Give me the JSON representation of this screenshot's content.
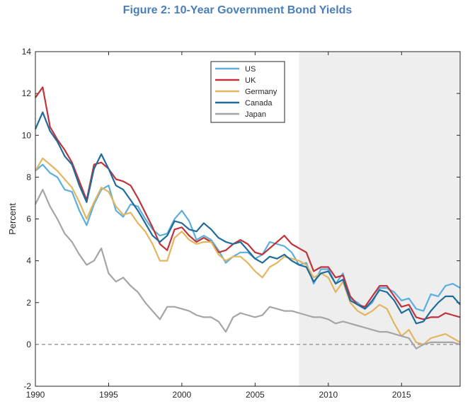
{
  "chart_data": {
    "type": "line",
    "title": "Figure 2: 10-Year Government Bond Yields",
    "xlabel": "",
    "ylabel": "Percent",
    "xlim": [
      1990,
      2019
    ],
    "ylim": [
      -2,
      14
    ],
    "xticks": [
      1990,
      1995,
      2000,
      2005,
      2010,
      2015
    ],
    "yticks": [
      -2,
      0,
      2,
      4,
      6,
      8,
      10,
      12,
      14
    ],
    "shaded_region": [
      2008,
      2019
    ],
    "zero_line": true,
    "legend_position": "top-center",
    "series": [
      {
        "name": "US",
        "color": "#5aaee0",
        "x": [
          1990,
          1990.5,
          1991,
          1991.5,
          1992,
          1992.5,
          1993,
          1993.5,
          1994,
          1994.5,
          1995,
          1995.5,
          1996,
          1996.5,
          1997,
          1997.5,
          1998,
          1998.5,
          1999,
          1999.5,
          2000,
          2000.5,
          2001,
          2001.5,
          2002,
          2002.5,
          2003,
          2003.5,
          2004,
          2004.5,
          2005,
          2005.5,
          2006,
          2006.5,
          2007,
          2007.5,
          2008,
          2008.5,
          2009,
          2009.5,
          2010,
          2010.5,
          2011,
          2011.5,
          2012,
          2012.5,
          2013,
          2013.5,
          2014,
          2014.5,
          2015,
          2015.5,
          2016,
          2016.5,
          2017,
          2017.5,
          2018,
          2018.5,
          2019
        ],
        "values": [
          8.3,
          8.6,
          8.2,
          8.0,
          7.4,
          7.3,
          6.4,
          5.7,
          6.7,
          7.4,
          7.6,
          6.4,
          6.1,
          6.7,
          6.6,
          6.0,
          5.5,
          5.2,
          5.3,
          6.0,
          6.4,
          5.9,
          5.0,
          5.2,
          5.0,
          4.5,
          3.9,
          4.2,
          4.4,
          4.4,
          4.1,
          4.3,
          4.9,
          4.8,
          4.7,
          4.4,
          3.8,
          3.9,
          2.9,
          3.6,
          3.6,
          2.9,
          3.4,
          2.2,
          2.0,
          1.7,
          2.0,
          2.7,
          2.7,
          2.5,
          2.1,
          2.2,
          1.7,
          1.6,
          2.4,
          2.3,
          2.8,
          2.9,
          2.7
        ]
      },
      {
        "name": "UK",
        "color": "#c0333a",
        "x": [
          1990,
          1990.5,
          1991,
          1991.5,
          1992,
          1992.5,
          1993,
          1993.5,
          1994,
          1994.5,
          1995,
          1995.5,
          1996,
          1996.5,
          1997,
          1997.5,
          1998,
          1998.5,
          1999,
          1999.5,
          2000,
          2000.5,
          2001,
          2001.5,
          2002,
          2002.5,
          2003,
          2003.5,
          2004,
          2004.5,
          2005,
          2005.5,
          2006,
          2006.5,
          2007,
          2007.5,
          2008,
          2008.5,
          2009,
          2009.5,
          2010,
          2010.5,
          2011,
          2011.5,
          2012,
          2012.5,
          2013,
          2013.5,
          2014,
          2014.5,
          2015,
          2015.5,
          2016,
          2016.5,
          2017,
          2017.5,
          2018,
          2018.5,
          2019
        ],
        "values": [
          11.8,
          12.3,
          10.4,
          9.8,
          9.3,
          8.7,
          7.8,
          6.9,
          8.6,
          8.7,
          8.4,
          7.9,
          7.8,
          7.6,
          7.0,
          6.3,
          5.6,
          4.8,
          4.5,
          5.5,
          5.6,
          5.2,
          4.9,
          5.1,
          4.9,
          4.4,
          4.5,
          4.8,
          5.0,
          4.8,
          4.4,
          4.3,
          4.6,
          4.9,
          5.2,
          4.8,
          4.6,
          4.4,
          3.5,
          3.7,
          3.7,
          3.2,
          3.3,
          2.3,
          1.9,
          1.8,
          2.3,
          2.8,
          2.8,
          2.3,
          1.8,
          1.9,
          1.3,
          1.2,
          1.3,
          1.3,
          1.5,
          1.4,
          1.3
        ]
      },
      {
        "name": "Germany",
        "color": "#e3b55e",
        "x": [
          1990,
          1990.5,
          1991,
          1991.5,
          1992,
          1992.5,
          1993,
          1993.5,
          1994,
          1994.5,
          1995,
          1995.5,
          1996,
          1996.5,
          1997,
          1997.5,
          1998,
          1998.5,
          1999,
          1999.5,
          2000,
          2000.5,
          2001,
          2001.5,
          2002,
          2002.5,
          2003,
          2003.5,
          2004,
          2004.5,
          2005,
          2005.5,
          2006,
          2006.5,
          2007,
          2007.5,
          2008,
          2008.5,
          2009,
          2009.5,
          2010,
          2010.5,
          2011,
          2011.5,
          2012,
          2012.5,
          2013,
          2013.5,
          2014,
          2014.5,
          2015,
          2015.5,
          2016,
          2016.5,
          2017,
          2017.5,
          2018,
          2018.5,
          2019
        ],
        "values": [
          8.3,
          8.9,
          8.6,
          8.3,
          7.9,
          7.5,
          6.8,
          6.0,
          6.8,
          7.5,
          7.3,
          6.6,
          6.2,
          6.3,
          5.8,
          5.4,
          4.8,
          4.0,
          4.0,
          5.1,
          5.4,
          5.0,
          4.8,
          4.9,
          4.9,
          4.3,
          4.0,
          4.2,
          4.2,
          3.9,
          3.5,
          3.2,
          3.7,
          3.9,
          4.2,
          4.1,
          4.0,
          3.8,
          3.2,
          3.4,
          3.2,
          2.5,
          3.0,
          2.0,
          1.6,
          1.4,
          1.6,
          1.9,
          1.7,
          1.0,
          0.4,
          0.7,
          0.1,
          0.0,
          0.3,
          0.4,
          0.5,
          0.3,
          0.1
        ]
      },
      {
        "name": "Canada",
        "color": "#1f6b9a",
        "x": [
          1990,
          1990.5,
          1991,
          1991.5,
          1992,
          1992.5,
          1993,
          1993.5,
          1994,
          1994.5,
          1995,
          1995.5,
          1996,
          1996.5,
          1997,
          1997.5,
          1998,
          1998.5,
          1999,
          1999.5,
          2000,
          2000.5,
          2001,
          2001.5,
          2002,
          2002.5,
          2003,
          2003.5,
          2004,
          2004.5,
          2005,
          2005.5,
          2006,
          2006.5,
          2007,
          2007.5,
          2008,
          2008.5,
          2009,
          2009.5,
          2010,
          2010.5,
          2011,
          2011.5,
          2012,
          2012.5,
          2013,
          2013.5,
          2014,
          2014.5,
          2015,
          2015.5,
          2016,
          2016.5,
          2017,
          2017.5,
          2018,
          2018.5,
          2019
        ],
        "values": [
          10.3,
          11.1,
          10.2,
          9.7,
          9.0,
          8.6,
          7.6,
          6.8,
          8.4,
          9.1,
          8.4,
          7.6,
          7.4,
          6.9,
          6.4,
          5.8,
          5.2,
          4.9,
          5.2,
          5.9,
          5.8,
          5.5,
          5.4,
          5.8,
          5.5,
          5.1,
          4.9,
          4.8,
          4.9,
          4.5,
          4.1,
          3.9,
          4.2,
          4.1,
          4.3,
          4.0,
          3.8,
          3.7,
          3.0,
          3.4,
          3.5,
          2.9,
          3.1,
          2.1,
          1.9,
          1.7,
          2.1,
          2.6,
          2.5,
          2.1,
          1.5,
          1.7,
          1.0,
          1.1,
          1.6,
          2.0,
          2.3,
          2.3,
          1.9
        ]
      },
      {
        "name": "Japan",
        "color": "#a6a4a8",
        "x": [
          1990,
          1990.5,
          1991,
          1991.5,
          1992,
          1992.5,
          1993,
          1993.5,
          1994,
          1994.5,
          1995,
          1995.5,
          1996,
          1996.5,
          1997,
          1997.5,
          1998,
          1998.5,
          1999,
          1999.5,
          2000,
          2000.5,
          2001,
          2001.5,
          2002,
          2002.5,
          2003,
          2003.5,
          2004,
          2004.5,
          2005,
          2005.5,
          2006,
          2006.5,
          2007,
          2007.5,
          2008,
          2008.5,
          2009,
          2009.5,
          2010,
          2010.5,
          2011,
          2011.5,
          2012,
          2012.5,
          2013,
          2013.5,
          2014,
          2014.5,
          2015,
          2015.5,
          2016,
          2016.5,
          2017,
          2017.5,
          2018,
          2018.5,
          2019
        ],
        "values": [
          6.7,
          7.4,
          6.6,
          6.0,
          5.3,
          4.9,
          4.3,
          3.8,
          4.0,
          4.6,
          3.4,
          3.0,
          3.2,
          2.8,
          2.5,
          2.0,
          1.6,
          1.2,
          1.8,
          1.8,
          1.7,
          1.6,
          1.4,
          1.3,
          1.3,
          1.1,
          0.6,
          1.3,
          1.5,
          1.4,
          1.3,
          1.4,
          1.8,
          1.7,
          1.6,
          1.6,
          1.5,
          1.4,
          1.3,
          1.3,
          1.2,
          1.0,
          1.1,
          1.0,
          0.9,
          0.8,
          0.7,
          0.6,
          0.6,
          0.5,
          0.4,
          0.3,
          -0.2,
          0.0,
          0.1,
          0.1,
          0.1,
          0.1,
          0.0
        ]
      }
    ]
  }
}
